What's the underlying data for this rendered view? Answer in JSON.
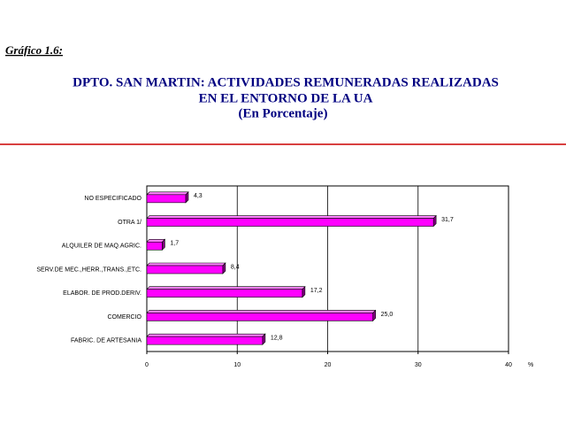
{
  "chart_data": {
    "type": "hbar",
    "figure_label": "Gráfico 1.6:",
    "title": [
      "DPTO. SAN MARTIN: ACTIVIDADES REMUNERADAS REALIZADAS",
      "EN EL ENTORNO DE LA UA"
    ],
    "subtitle": "(En Porcentaje)",
    "x_label": "%",
    "categories": [
      "NO ESPECIFICADO",
      "OTRA 1/",
      "ALQUILER DE MAQ.AGRIC.",
      "SERV.DE MEC.,HERR.,TRANS.,ETC.",
      "ELABOR. DE PROD.DERIV.",
      "COMERCIO",
      "FABRIC. DE ARTESANIA"
    ],
    "values": [
      4.3,
      31.7,
      1.7,
      8.4,
      17.2,
      25.0,
      12.8
    ],
    "value_labels": [
      "4,3",
      "31,7",
      "1,7",
      "8,4",
      "17,2",
      "25,0",
      "12,8"
    ],
    "color": "#ff00ff",
    "xlim": [
      0,
      40
    ],
    "xticks": [
      0,
      10,
      20,
      30,
      40
    ],
    "grid": true
  }
}
